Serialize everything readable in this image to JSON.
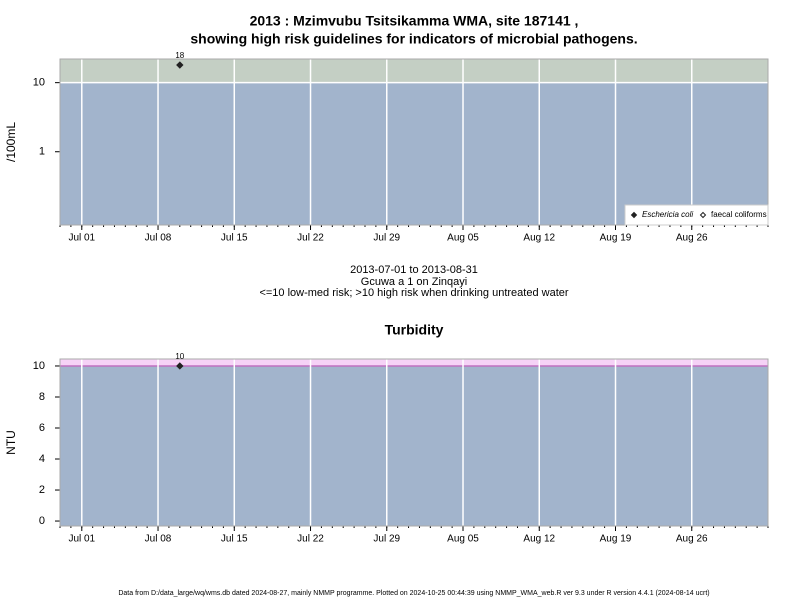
{
  "chart_data": [
    {
      "type": "scatter",
      "title": "2013 : Mzimvubu Tsitsikamma WMA, site 187141 ,",
      "subtitle": "showing high risk guidelines for indicators of microbial pathogens.",
      "ylabel": "/100mL",
      "log_y": true,
      "ylim": [
        0.087,
        22
      ],
      "yticks": [
        1,
        10
      ],
      "xlim": [
        "2013-06-29",
        "2013-09-02"
      ],
      "xticks": [
        {
          "value": "2013-07-01",
          "label": "Jul 01"
        },
        {
          "value": "2013-07-08",
          "label": "Jul 08"
        },
        {
          "value": "2013-07-15",
          "label": "Jul 15"
        },
        {
          "value": "2013-07-22",
          "label": "Jul 22"
        },
        {
          "value": "2013-07-29",
          "label": "Jul 29"
        },
        {
          "value": "2013-08-05",
          "label": "Aug 05"
        },
        {
          "value": "2013-08-12",
          "label": "Aug 12"
        },
        {
          "value": "2013-08-19",
          "label": "Aug 19"
        },
        {
          "value": "2013-08-26",
          "label": "Aug 26"
        }
      ],
      "threshold": 10,
      "band_low_color": "#a2b4cc",
      "band_high_color": "#c4cfc4",
      "band_line_color": "#ffffff",
      "grid": true,
      "legend": "bottom-right",
      "series": [
        {
          "name": "Eschericia coli",
          "color": "#222222",
          "x": [
            "2013-07-10"
          ],
          "values": [
            18
          ]
        },
        {
          "name": "faecal coliforms",
          "color": "#222222",
          "x": [],
          "values": []
        }
      ],
      "annotations": [
        "2013-07-01 to 2013-08-31",
        "Gcuwa a 1 on Zinqayi",
        "<=10 low-med risk; >10 high risk when drinking untreated water"
      ]
    },
    {
      "type": "scatter",
      "title": "Turbidity",
      "ylabel": "NTU",
      "log_y": false,
      "ylim": [
        -0.32,
        10.45
      ],
      "yticks": [
        0,
        2,
        4,
        6,
        8,
        10
      ],
      "xlim": [
        "2013-06-29",
        "2013-09-02"
      ],
      "xticks": [
        {
          "value": "2013-07-01",
          "label": "Jul 01"
        },
        {
          "value": "2013-07-08",
          "label": "Jul 08"
        },
        {
          "value": "2013-07-15",
          "label": "Jul 15"
        },
        {
          "value": "2013-07-22",
          "label": "Jul 22"
        },
        {
          "value": "2013-07-29",
          "label": "Jul 29"
        },
        {
          "value": "2013-08-05",
          "label": "Aug 05"
        },
        {
          "value": "2013-08-12",
          "label": "Aug 12"
        },
        {
          "value": "2013-08-19",
          "label": "Aug 19"
        },
        {
          "value": "2013-08-26",
          "label": "Aug 26"
        }
      ],
      "threshold": 10,
      "band_low_color": "#a2b4cc",
      "band_high_color": "#f6d2f6",
      "band_line_color": "#c070c0",
      "grid": true,
      "series": [
        {
          "color": "#222222",
          "x": [
            "2013-07-10"
          ],
          "values": [
            10
          ]
        }
      ]
    }
  ],
  "footer": "Data from D:/data_large/wq/wms.db dated 2024-08-27, mainly NMMP programme. Plotted on 2024-10-25 00:44:39 using NMMP_WMA_web.R ver 9.3 under R version 4.4.1 (2024-08-14 ucrt)"
}
